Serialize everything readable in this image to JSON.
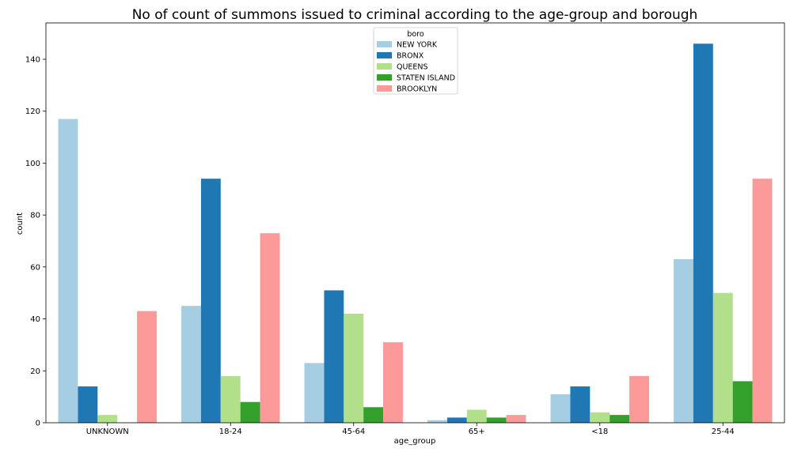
{
  "chart_data": {
    "type": "bar",
    "title": "No of count of summons issued to criminal according to the age-group and borough",
    "xlabel": "age_group",
    "ylabel": "count",
    "categories": [
      "UNKNOWN",
      "18-24",
      "45-64",
      "65+",
      "<18",
      "25-44"
    ],
    "ylim": [
      0,
      154
    ],
    "yticks": [
      0,
      20,
      40,
      60,
      80,
      100,
      120,
      140
    ],
    "grid": false,
    "legend": {
      "title": "boro",
      "placement": "top-center"
    },
    "series": [
      {
        "name": "NEW YORK",
        "color": "#a6cee3",
        "values": [
          117,
          45,
          23,
          1,
          11,
          63
        ]
      },
      {
        "name": "BRONX",
        "color": "#1f78b4",
        "values": [
          14,
          94,
          51,
          2,
          14,
          146
        ]
      },
      {
        "name": "QUEENS",
        "color": "#b2df8a",
        "values": [
          3,
          18,
          42,
          5,
          4,
          50
        ]
      },
      {
        "name": "STATEN ISLAND",
        "color": "#33a02c",
        "values": [
          0,
          8,
          6,
          2,
          3,
          16
        ]
      },
      {
        "name": "BROOKLYN",
        "color": "#fb9a99",
        "values": [
          43,
          73,
          31,
          3,
          18,
          94
        ]
      }
    ]
  }
}
